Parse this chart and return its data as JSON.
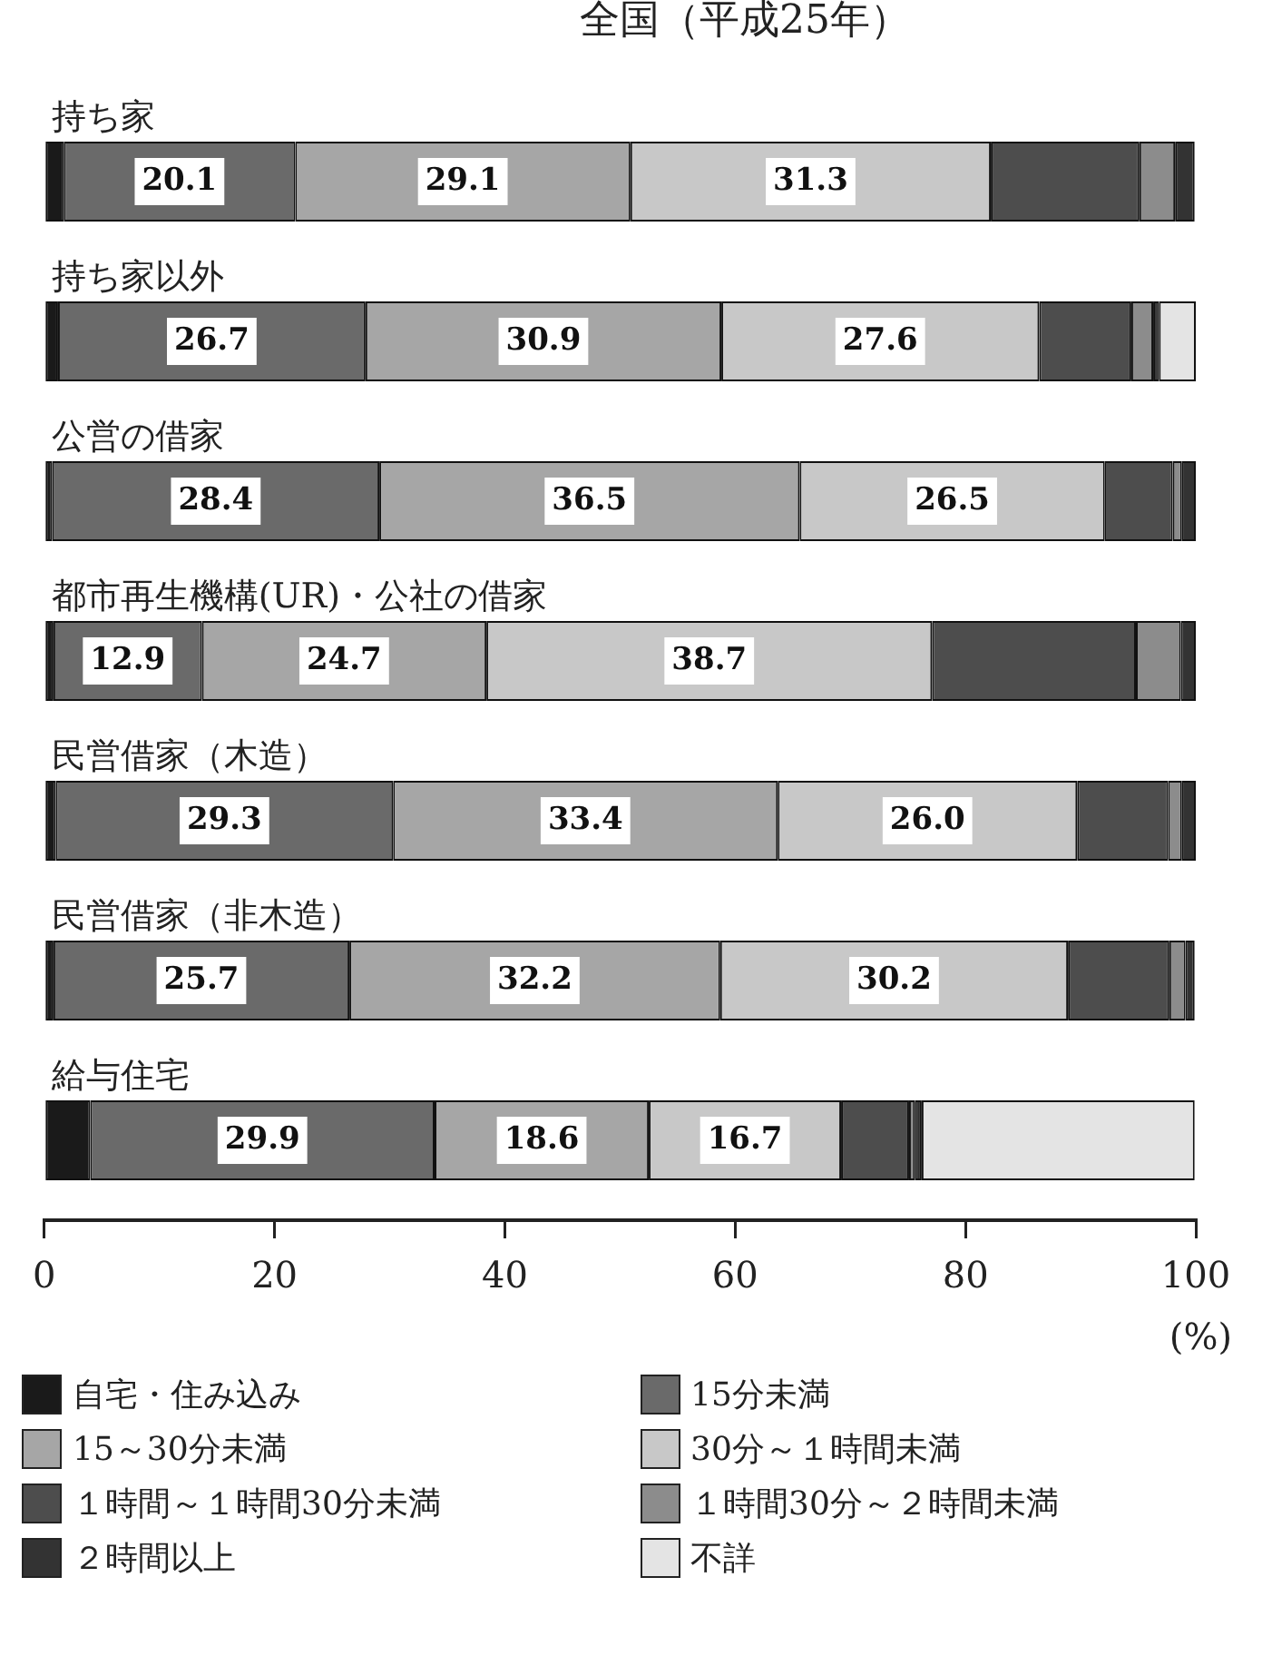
{
  "chart_data": {
    "type": "bar",
    "orientation": "horizontal",
    "stacked": true,
    "title": "全国（平成25年）",
    "xlabel": "(%)",
    "categories": [
      "持ち家",
      "持ち家以外",
      "公営の借家",
      "都市再生機構(UR)・公社の借家",
      "民営借家（木造）",
      "民営借家（非木造）",
      "給与住宅"
    ],
    "series": [
      {
        "name": "自宅・住み込み",
        "color": "#1a1a1a",
        "values": [
          1.7,
          1.2,
          0.7,
          0.8,
          1.0,
          0.8,
          4.0
        ]
      },
      {
        "name": "15分未満",
        "color": "#6a6a6a",
        "values": [
          20.1,
          26.7,
          28.4,
          12.9,
          29.3,
          25.7,
          29.9
        ],
        "value_labels": [
          "20.1",
          "26.7",
          "28.4",
          "12.9",
          "29.3",
          "25.7",
          "29.9"
        ]
      },
      {
        "name": "15～30分未満",
        "color": "#a6a6a6",
        "values": [
          29.1,
          30.9,
          36.5,
          24.7,
          33.4,
          32.2,
          18.6
        ],
        "value_labels": [
          "29.1",
          "30.9",
          "36.5",
          "24.7",
          "33.4",
          "32.2",
          "18.6"
        ]
      },
      {
        "name": "30分～１時間未満",
        "color": "#c8c8c8",
        "values": [
          31.3,
          27.6,
          26.5,
          38.7,
          26.0,
          30.2,
          16.7
        ],
        "value_labels": [
          "31.3",
          "27.6",
          "26.5",
          "38.7",
          "26.0",
          "30.2",
          "16.7"
        ]
      },
      {
        "name": "１時間～１時間30分未満",
        "color": "#4d4d4d",
        "values": [
          12.9,
          8.0,
          5.9,
          17.7,
          7.9,
          8.8,
          5.9
        ]
      },
      {
        "name": "１時間30分～２時間未満",
        "color": "#8c8c8c",
        "values": [
          3.1,
          1.9,
          0.8,
          3.9,
          1.2,
          1.4,
          0.5
        ]
      },
      {
        "name": "２時間以上",
        "color": "#333333",
        "values": [
          1.7,
          0.5,
          1.2,
          1.3,
          1.2,
          0.8,
          0.6
        ]
      },
      {
        "name": "不詳",
        "color": "#e4e4e4",
        "values": [
          null,
          3.2,
          null,
          null,
          null,
          null,
          23.7
        ]
      }
    ],
    "xlim": [
      0,
      100
    ],
    "xticks": [
      0,
      20,
      40,
      60,
      80,
      100
    ],
    "grid": false,
    "legend": "bottom"
  }
}
